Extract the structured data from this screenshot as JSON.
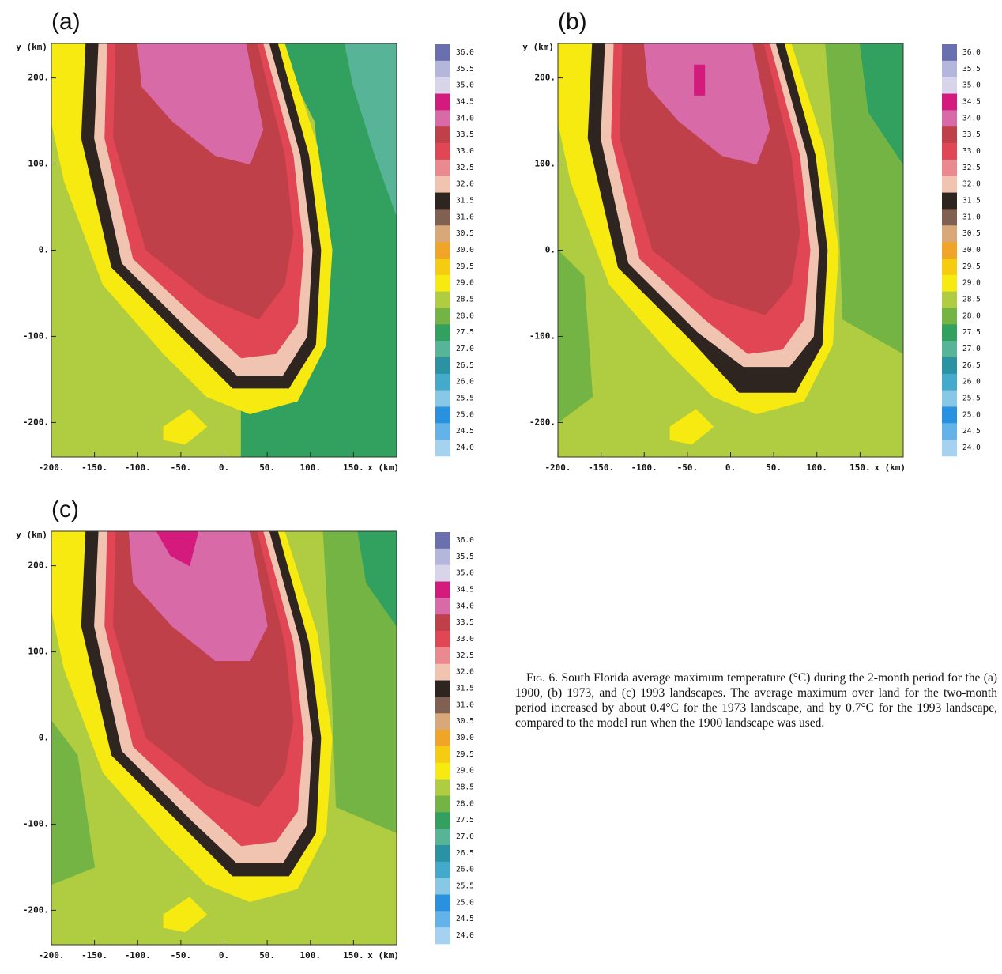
{
  "chart_data": [
    {
      "type": "heatmap",
      "title": "(a)",
      "xlabel": "x (km)",
      "ylabel": "y (km)",
      "xlim": [
        -200,
        200
      ],
      "ylim": [
        -240,
        240
      ],
      "xticks": [
        {
          "value": -200,
          "label": "-200."
        },
        {
          "value": -150,
          "label": "-150."
        },
        {
          "value": -100,
          "label": "-100."
        },
        {
          "value": -50,
          "label": "-50."
        },
        {
          "value": 0,
          "label": "0."
        },
        {
          "value": 50,
          "label": "50."
        },
        {
          "value": 100,
          "label": "100."
        },
        {
          "value": 150,
          "label": "150."
        }
      ],
      "yticks": [
        {
          "value": -200,
          "label": "-200."
        },
        {
          "value": -100,
          "label": "-100."
        },
        {
          "value": 0,
          "label": "0."
        },
        {
          "value": 100,
          "label": "100."
        },
        {
          "value": 200,
          "label": "200."
        }
      ],
      "regions": [
        {
          "value": 28.5,
          "x": [
            -200,
            200,
            200,
            -200
          ],
          "y": [
            240,
            240,
            -240,
            -240
          ]
        },
        {
          "value": 27.5,
          "x": [
            60,
            200,
            200,
            20,
            20,
            75,
            110,
            122,
            105
          ],
          "y": [
            240,
            240,
            -240,
            -240,
            -165,
            -150,
            -100,
            0,
            150
          ]
        },
        {
          "value": 27.0,
          "x": [
            140,
            200,
            200,
            175,
            150
          ],
          "y": [
            240,
            240,
            40,
            110,
            190
          ]
        },
        {
          "value": 29.0,
          "x": [
            -200,
            70,
            108,
            125,
            118,
            85,
            30,
            -20,
            -70,
            -140,
            -185,
            -200
          ],
          "y": [
            240,
            240,
            120,
            0,
            -110,
            -175,
            -190,
            -170,
            -120,
            -40,
            80,
            150
          ]
        },
        {
          "value": 31.5,
          "x": [
            -160,
            62,
            98,
            112,
            106,
            75,
            10,
            -45,
            -130,
            -165
          ],
          "y": [
            240,
            240,
            110,
            0,
            -110,
            -160,
            -160,
            -105,
            -20,
            130
          ]
        },
        {
          "value": 32.0,
          "x": [
            -145,
            52,
            88,
            102,
            96,
            68,
            15,
            -38,
            -118,
            -150
          ],
          "y": [
            240,
            240,
            110,
            0,
            -100,
            -145,
            -145,
            -95,
            -15,
            130
          ]
        },
        {
          "value": 33.0,
          "x": [
            -135,
            45,
            80,
            92,
            85,
            60,
            20,
            -30,
            -105,
            -138
          ],
          "y": [
            240,
            240,
            110,
            0,
            -85,
            -120,
            -125,
            -80,
            -10,
            130
          ]
        },
        {
          "value": 33.5,
          "x": [
            -125,
            38,
            70,
            80,
            70,
            40,
            -20,
            -90,
            -128
          ],
          "y": [
            240,
            240,
            110,
            20,
            -40,
            -80,
            -55,
            0,
            130
          ]
        },
        {
          "value": 34.0,
          "x": [
            -100,
            25,
            45,
            30,
            -10,
            -60,
            -95
          ],
          "y": [
            240,
            240,
            140,
            100,
            110,
            150,
            190
          ]
        },
        {
          "value": 29.0,
          "x": [
            -70,
            -40,
            -20,
            -45,
            -70
          ],
          "y": [
            -205,
            -185,
            -205,
            -225,
            -220
          ]
        }
      ]
    },
    {
      "type": "heatmap",
      "title": "(b)",
      "xlabel": "x (km)",
      "ylabel": "y (km)",
      "xlim": [
        -200,
        200
      ],
      "ylim": [
        -240,
        240
      ],
      "xticks": [
        {
          "value": -200,
          "label": "-200."
        },
        {
          "value": -150,
          "label": "-150."
        },
        {
          "value": -100,
          "label": "-100."
        },
        {
          "value": -50,
          "label": "-50."
        },
        {
          "value": 0,
          "label": "0."
        },
        {
          "value": 50,
          "label": "50."
        },
        {
          "value": 100,
          "label": "100."
        },
        {
          "value": 150,
          "label": "150."
        }
      ],
      "yticks": [
        {
          "value": -200,
          "label": "-200."
        },
        {
          "value": -100,
          "label": "-100."
        },
        {
          "value": 0,
          "label": "0."
        },
        {
          "value": 100,
          "label": "100."
        },
        {
          "value": 200,
          "label": "200."
        }
      ],
      "regions": [
        {
          "value": 28.5,
          "x": [
            -200,
            200,
            200,
            -200
          ],
          "y": [
            240,
            240,
            -240,
            -240
          ]
        },
        {
          "value": 28.0,
          "x": [
            -200,
            -170,
            -160,
            -200
          ],
          "y": [
            0,
            -30,
            -170,
            -200
          ]
        },
        {
          "value": 28.0,
          "x": [
            110,
            200,
            200,
            130,
            125
          ],
          "y": [
            240,
            240,
            -120,
            -80,
            60
          ]
        },
        {
          "value": 27.5,
          "x": [
            150,
            200,
            200,
            160
          ],
          "y": [
            240,
            240,
            100,
            160
          ]
        },
        {
          "value": 29.0,
          "x": [
            -200,
            70,
            108,
            125,
            118,
            85,
            30,
            -20,
            -70,
            -140,
            -185,
            -200
          ],
          "y": [
            240,
            240,
            120,
            0,
            -110,
            -175,
            -190,
            -170,
            -120,
            -40,
            80,
            150
          ]
        },
        {
          "value": 31.5,
          "x": [
            -160,
            62,
            98,
            112,
            106,
            75,
            10,
            -45,
            -130,
            -165
          ],
          "y": [
            240,
            240,
            110,
            0,
            -110,
            -165,
            -165,
            -105,
            -20,
            130
          ]
        },
        {
          "value": 32.0,
          "x": [
            -145,
            52,
            88,
            102,
            96,
            68,
            15,
            -38,
            -118,
            -150
          ],
          "y": [
            240,
            240,
            110,
            0,
            -100,
            -135,
            -135,
            -95,
            -15,
            130
          ]
        },
        {
          "value": 33.0,
          "x": [
            -135,
            45,
            80,
            92,
            85,
            60,
            20,
            -30,
            -105,
            -138
          ],
          "y": [
            240,
            240,
            110,
            0,
            -80,
            -115,
            -120,
            -80,
            -10,
            130
          ]
        },
        {
          "value": 33.5,
          "x": [
            -125,
            38,
            70,
            80,
            70,
            40,
            -20,
            -90,
            -128
          ],
          "y": [
            240,
            240,
            110,
            20,
            -40,
            -75,
            -55,
            0,
            130
          ]
        },
        {
          "value": 34.0,
          "x": [
            -100,
            25,
            45,
            30,
            -10,
            -60,
            -95
          ],
          "y": [
            240,
            240,
            140,
            100,
            110,
            150,
            190
          ]
        },
        {
          "value": 34.5,
          "x": [
            -42,
            -30,
            -30,
            -42
          ],
          "y": [
            215,
            215,
            180,
            180
          ]
        },
        {
          "value": 29.0,
          "x": [
            -70,
            -40,
            -20,
            -45,
            -70
          ],
          "y": [
            -205,
            -185,
            -205,
            -225,
            -220
          ]
        }
      ]
    },
    {
      "type": "heatmap",
      "title": "(c)",
      "xlabel": "x (km)",
      "ylabel": "y (km)",
      "xlim": [
        -200,
        200
      ],
      "ylim": [
        -240,
        240
      ],
      "xticks": [
        {
          "value": -200,
          "label": "-200."
        },
        {
          "value": -150,
          "label": "-150."
        },
        {
          "value": -100,
          "label": "-100."
        },
        {
          "value": -50,
          "label": "-50."
        },
        {
          "value": 0,
          "label": "0."
        },
        {
          "value": 50,
          "label": "50."
        },
        {
          "value": 100,
          "label": "100."
        },
        {
          "value": 150,
          "label": "150."
        }
      ],
      "yticks": [
        {
          "value": -200,
          "label": "-200."
        },
        {
          "value": -100,
          "label": "-100."
        },
        {
          "value": 0,
          "label": "0."
        },
        {
          "value": 100,
          "label": "100."
        },
        {
          "value": 200,
          "label": "200."
        }
      ],
      "regions": [
        {
          "value": 28.5,
          "x": [
            -200,
            200,
            200,
            -200
          ],
          "y": [
            240,
            240,
            -240,
            -240
          ]
        },
        {
          "value": 28.0,
          "x": [
            -200,
            -170,
            -150,
            -200
          ],
          "y": [
            20,
            -20,
            -150,
            -170
          ]
        },
        {
          "value": 28.0,
          "x": [
            115,
            200,
            200,
            130,
            125
          ],
          "y": [
            240,
            240,
            -110,
            -80,
            60
          ]
        },
        {
          "value": 27.5,
          "x": [
            155,
            200,
            200,
            165
          ],
          "y": [
            240,
            240,
            130,
            180
          ]
        },
        {
          "value": 29.0,
          "x": [
            -200,
            70,
            108,
            125,
            118,
            85,
            30,
            -20,
            -70,
            -140,
            -185,
            -200
          ],
          "y": [
            240,
            240,
            120,
            0,
            -110,
            -175,
            -190,
            -170,
            -120,
            -40,
            80,
            150
          ]
        },
        {
          "value": 31.5,
          "x": [
            -160,
            62,
            98,
            112,
            106,
            75,
            10,
            -45,
            -130,
            -165
          ],
          "y": [
            240,
            240,
            110,
            0,
            -110,
            -160,
            -160,
            -105,
            -20,
            130
          ]
        },
        {
          "value": 32.0,
          "x": [
            -145,
            52,
            88,
            102,
            96,
            68,
            15,
            -38,
            -118,
            -150
          ],
          "y": [
            240,
            240,
            110,
            0,
            -100,
            -145,
            -145,
            -95,
            -15,
            130
          ]
        },
        {
          "value": 33.0,
          "x": [
            -135,
            45,
            80,
            92,
            85,
            60,
            20,
            -30,
            -105,
            -138
          ],
          "y": [
            240,
            240,
            110,
            0,
            -85,
            -120,
            -125,
            -80,
            -10,
            130
          ]
        },
        {
          "value": 33.5,
          "x": [
            -125,
            38,
            70,
            80,
            70,
            40,
            -20,
            -90,
            -128
          ],
          "y": [
            240,
            240,
            110,
            20,
            -40,
            -80,
            -55,
            0,
            130
          ]
        },
        {
          "value": 34.0,
          "x": [
            -110,
            30,
            50,
            30,
            -10,
            -60,
            -105
          ],
          "y": [
            240,
            240,
            130,
            90,
            90,
            130,
            180
          ]
        },
        {
          "value": 34.5,
          "x": [
            -78,
            -30,
            -40,
            -62
          ],
          "y": [
            240,
            240,
            200,
            212
          ]
        },
        {
          "value": 29.0,
          "x": [
            -70,
            -40,
            -20,
            -45,
            -70
          ],
          "y": [
            -205,
            -185,
            -205,
            -225,
            -220
          ]
        }
      ]
    }
  ],
  "colorbar": {
    "levels": [
      {
        "value": 36,
        "label": "36.0"
      },
      {
        "value": 35.5,
        "label": "35.5"
      },
      {
        "value": 35,
        "label": "35.0"
      },
      {
        "value": 34.5,
        "label": "34.5"
      },
      {
        "value": 34,
        "label": "34.0"
      },
      {
        "value": 33.5,
        "label": "33.5"
      },
      {
        "value": 33,
        "label": "33.0"
      },
      {
        "value": 32.5,
        "label": "32.5"
      },
      {
        "value": 32,
        "label": "32.0"
      },
      {
        "value": 31.5,
        "label": "31.5"
      },
      {
        "value": 31,
        "label": "31.0"
      },
      {
        "value": 30.5,
        "label": "30.5"
      },
      {
        "value": 30,
        "label": "30.0"
      },
      {
        "value": 29.5,
        "label": "29.5"
      },
      {
        "value": 29,
        "label": "29.0"
      },
      {
        "value": 28.5,
        "label": "28.5"
      },
      {
        "value": 28,
        "label": "28.0"
      },
      {
        "value": 27.5,
        "label": "27.5"
      },
      {
        "value": 27,
        "label": "27.0"
      },
      {
        "value": 26.5,
        "label": "26.5"
      },
      {
        "value": 26,
        "label": "26.0"
      },
      {
        "value": 25.5,
        "label": "25.5"
      },
      {
        "value": 25,
        "label": "25.0"
      },
      {
        "value": 24.5,
        "label": "24.5"
      },
      {
        "value": 24,
        "label": "24.0"
      }
    ],
    "colors": [
      "#6a6fb0",
      "#b4b6dc",
      "#d8d4ea",
      "#d41a7c",
      "#d86aa8",
      "#bf4048",
      "#e04654",
      "#ea8a90",
      "#f1c4b2",
      "#2e2420",
      "#806050",
      "#d8a878",
      "#f0a428",
      "#f6cc10",
      "#f6ea10",
      "#b0cc40",
      "#74b444",
      "#32a05e",
      "#58b496",
      "#2a92a2",
      "#44aacc",
      "#86c8e6",
      "#2892e0",
      "#64b2ea",
      "#a6d2f2"
    ]
  },
  "caption": {
    "label": "Fig. 6.",
    "text": "South Florida average maximum temperature (°C) during the 2-month period for the (a) 1900, (b) 1973, and (c) 1993 landscapes. The average maximum over land for the two-month period increased by about 0.4°C for the 1973 landscape, and by 0.7°C for the 1993 landscape, compared to the model run when the 1900 landscape was used."
  }
}
